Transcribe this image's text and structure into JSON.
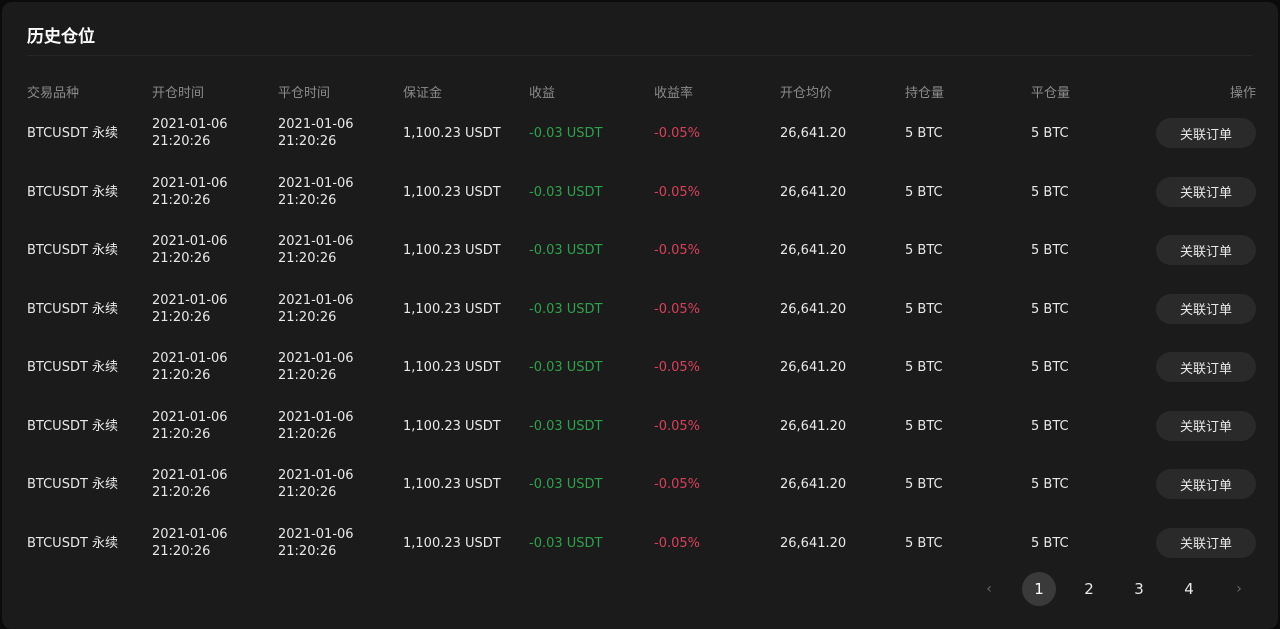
{
  "title": "历史仓位",
  "columns": {
    "symbol": "交易品种",
    "open_time": "开仓时间",
    "close_time": "平仓时间",
    "margin": "保证金",
    "pnl": "收益",
    "pnl_rate": "收益率",
    "avg_open_price": "开仓均价",
    "position_size": "持仓量",
    "closed_size": "平仓量",
    "actions": "操作"
  },
  "rows": [
    {
      "symbol": "BTCUSDT 永续",
      "open_date": "2021-01-06",
      "open_time": "21:20:26",
      "close_date": "2021-01-06",
      "close_time": "21:20:26",
      "margin": "1,100.23 USDT",
      "pnl": "-0.03 USDT",
      "pnl_rate": "-0.05%",
      "avg_open_price": "26,641.20",
      "position_size": "5 BTC",
      "closed_size": "5 BTC",
      "action": "关联订单"
    },
    {
      "symbol": "BTCUSDT 永续",
      "open_date": "2021-01-06",
      "open_time": "21:20:26",
      "close_date": "2021-01-06",
      "close_time": "21:20:26",
      "margin": "1,100.23 USDT",
      "pnl": "-0.03 USDT",
      "pnl_rate": "-0.05%",
      "avg_open_price": "26,641.20",
      "position_size": "5 BTC",
      "closed_size": "5 BTC",
      "action": "关联订单"
    },
    {
      "symbol": "BTCUSDT 永续",
      "open_date": "2021-01-06",
      "open_time": "21:20:26",
      "close_date": "2021-01-06",
      "close_time": "21:20:26",
      "margin": "1,100.23 USDT",
      "pnl": "-0.03 USDT",
      "pnl_rate": "-0.05%",
      "avg_open_price": "26,641.20",
      "position_size": "5 BTC",
      "closed_size": "5 BTC",
      "action": "关联订单"
    },
    {
      "symbol": "BTCUSDT 永续",
      "open_date": "2021-01-06",
      "open_time": "21:20:26",
      "close_date": "2021-01-06",
      "close_time": "21:20:26",
      "margin": "1,100.23 USDT",
      "pnl": "-0.03 USDT",
      "pnl_rate": "-0.05%",
      "avg_open_price": "26,641.20",
      "position_size": "5 BTC",
      "closed_size": "5 BTC",
      "action": "关联订单"
    },
    {
      "symbol": "BTCUSDT 永续",
      "open_date": "2021-01-06",
      "open_time": "21:20:26",
      "close_date": "2021-01-06",
      "close_time": "21:20:26",
      "margin": "1,100.23 USDT",
      "pnl": "-0.03 USDT",
      "pnl_rate": "-0.05%",
      "avg_open_price": "26,641.20",
      "position_size": "5 BTC",
      "closed_size": "5 BTC",
      "action": "关联订单"
    },
    {
      "symbol": "BTCUSDT 永续",
      "open_date": "2021-01-06",
      "open_time": "21:20:26",
      "close_date": "2021-01-06",
      "close_time": "21:20:26",
      "margin": "1,100.23 USDT",
      "pnl": "-0.03 USDT",
      "pnl_rate": "-0.05%",
      "avg_open_price": "26,641.20",
      "position_size": "5 BTC",
      "closed_size": "5 BTC",
      "action": "关联订单"
    },
    {
      "symbol": "BTCUSDT 永续",
      "open_date": "2021-01-06",
      "open_time": "21:20:26",
      "close_date": "2021-01-06",
      "close_time": "21:20:26",
      "margin": "1,100.23 USDT",
      "pnl": "-0.03 USDT",
      "pnl_rate": "-0.05%",
      "avg_open_price": "26,641.20",
      "position_size": "5 BTC",
      "closed_size": "5 BTC",
      "action": "关联订单"
    },
    {
      "symbol": "BTCUSDT 永续",
      "open_date": "2021-01-06",
      "open_time": "21:20:26",
      "close_date": "2021-01-06",
      "close_time": "21:20:26",
      "margin": "1,100.23 USDT",
      "pnl": "-0.03 USDT",
      "pnl_rate": "-0.05%",
      "avg_open_price": "26,641.20",
      "position_size": "5 BTC",
      "closed_size": "5 BTC",
      "action": "关联订单"
    }
  ],
  "pagination": {
    "prev_icon": "chevron-left-icon",
    "next_icon": "chevron-right-icon",
    "pages": [
      "1",
      "2",
      "3",
      "4"
    ],
    "current": "1"
  },
  "colors": {
    "background": "#1b1b1b",
    "positive": "#2fa14d",
    "negative": "#d8405a",
    "header_text": "#8a8a8a"
  }
}
